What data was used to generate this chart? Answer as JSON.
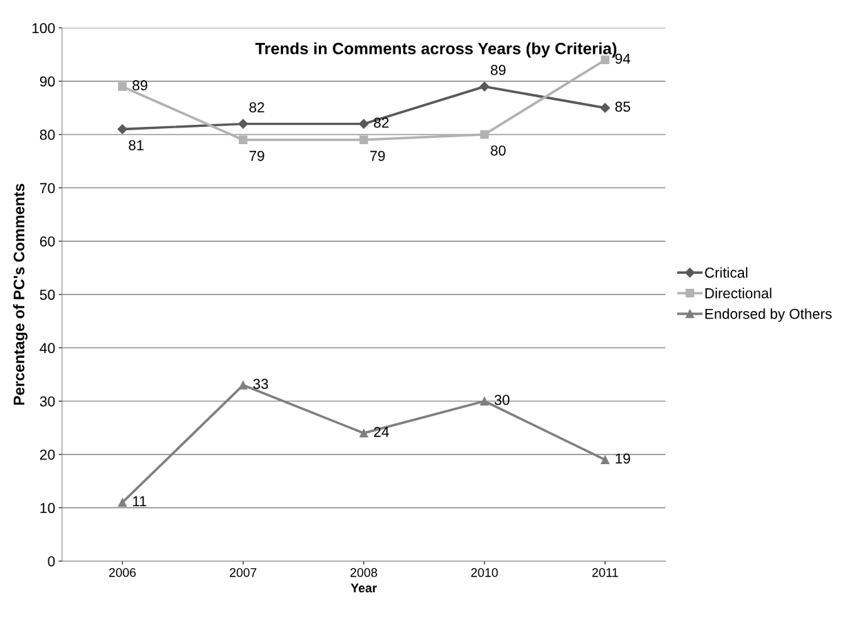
{
  "chart_data": {
    "type": "line",
    "title": "Trends in Comments across Years (by Criteria)",
    "xlabel": "Year",
    "ylabel": "Percentage of PC's Comments",
    "categories": [
      "2006",
      "2007",
      "2008",
      "2010",
      "2011"
    ],
    "series": [
      {
        "name": "Critical",
        "color": "#595959",
        "marker": "diamond",
        "values": [
          81,
          82,
          82,
          89,
          85
        ]
      },
      {
        "name": "Directional",
        "color": "#b2b2b2",
        "marker": "square",
        "values": [
          89,
          79,
          79,
          80,
          94
        ]
      },
      {
        "name": "Endorsed by Others",
        "color": "#7f7f7f",
        "marker": "triangle",
        "values": [
          11,
          33,
          24,
          30,
          19
        ]
      }
    ],
    "ylim": [
      0,
      100
    ],
    "yticks": [
      0,
      10,
      20,
      30,
      40,
      50,
      60,
      70,
      80,
      90,
      100
    ],
    "grid": "y",
    "legend": "right",
    "data_labels": true,
    "line_style": "solid"
  }
}
